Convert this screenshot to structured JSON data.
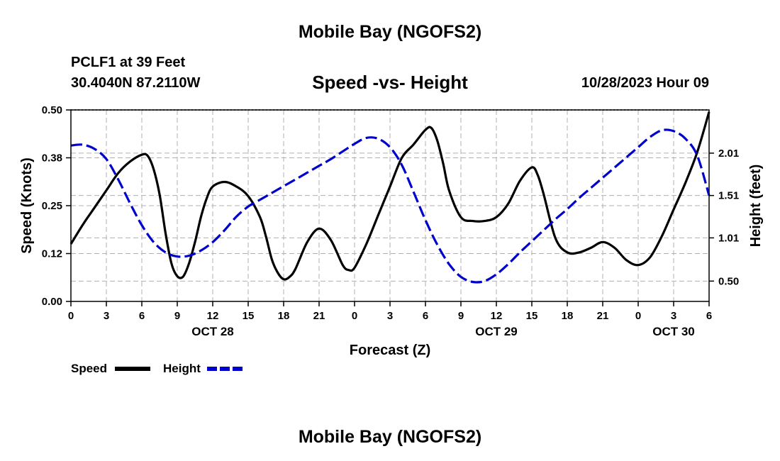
{
  "header": {
    "title": "Mobile Bay (NGOFS2)",
    "station": "PCLF1 at 39 Feet",
    "coords": "30.4040N  87.2110W",
    "subtitle": "Speed -vs- Height",
    "datetime": "10/28/2023 Hour 09"
  },
  "footer": {
    "title": "Mobile Bay (NGOFS2)"
  },
  "chart_data": {
    "type": "line",
    "title": "Speed -vs- Height",
    "xlabel": "Forecast (Z)",
    "ylabel": "Speed (Knots)",
    "y2label": "Height (feet)",
    "grid": true,
    "xlim": [
      0,
      54
    ],
    "ylim": [
      0,
      0.5
    ],
    "y2lim": [
      0.26,
      2.52
    ],
    "x_ticks": [
      0,
      3,
      6,
      9,
      12,
      15,
      18,
      21,
      24,
      27,
      30,
      33,
      36,
      39,
      42,
      45,
      48,
      51,
      54
    ],
    "x_tick_labels": [
      "0",
      "3",
      "6",
      "9",
      "12",
      "15",
      "18",
      "21",
      "0",
      "3",
      "6",
      "9",
      "12",
      "15",
      "18",
      "21",
      "0",
      "3",
      "6"
    ],
    "date_labels": [
      {
        "x": 12,
        "label": "OCT 28"
      },
      {
        "x": 36,
        "label": "OCT 29"
      },
      {
        "x": 51,
        "label": "OCT 30"
      }
    ],
    "y_ticks": [
      0.0,
      0.125,
      0.25,
      0.375,
      0.5
    ],
    "y_tick_labels": [
      "0.00",
      "0.12",
      "0.25",
      "0.38",
      "0.50"
    ],
    "y2_ticks": [
      0.5,
      1.01,
      1.51,
      2.01
    ],
    "y2_tick_labels": [
      "0.50",
      "1.01",
      "1.51",
      "2.01"
    ],
    "legend_position": "bottom-left",
    "series": [
      {
        "name": "Speed",
        "axis": "left",
        "color": "#000000",
        "style": "solid",
        "x": [
          0,
          1,
          2,
          3,
          4,
          5,
          6,
          6.5,
          7,
          7.5,
          8,
          8.5,
          9,
          9.5,
          10,
          10.5,
          11,
          11.5,
          12,
          13,
          14,
          15,
          16,
          16.5,
          17,
          17.5,
          18,
          18.5,
          19,
          20,
          21,
          22,
          23,
          23.5,
          24,
          25,
          26,
          27,
          28,
          29,
          30,
          30.5,
          31,
          31.5,
          32,
          33,
          34,
          35,
          36,
          37,
          38,
          39,
          39.5,
          40,
          41,
          42,
          43,
          44,
          45,
          46,
          47,
          48,
          49,
          50,
          51,
          52,
          53,
          54
        ],
        "values": [
          0.15,
          0.2,
          0.245,
          0.29,
          0.335,
          0.365,
          0.383,
          0.38,
          0.345,
          0.28,
          0.18,
          0.1,
          0.066,
          0.065,
          0.1,
          0.155,
          0.22,
          0.27,
          0.3,
          0.312,
          0.3,
          0.275,
          0.22,
          0.17,
          0.11,
          0.075,
          0.058,
          0.064,
          0.085,
          0.155,
          0.19,
          0.16,
          0.095,
          0.082,
          0.088,
          0.15,
          0.225,
          0.3,
          0.375,
          0.41,
          0.448,
          0.453,
          0.42,
          0.36,
          0.29,
          0.22,
          0.21,
          0.21,
          0.22,
          0.255,
          0.315,
          0.35,
          0.33,
          0.28,
          0.165,
          0.128,
          0.128,
          0.14,
          0.155,
          0.14,
          0.108,
          0.095,
          0.115,
          0.17,
          0.24,
          0.31,
          0.39,
          0.495
        ]
      },
      {
        "name": "Height",
        "axis": "right",
        "color": "#0000cc",
        "style": "dashed",
        "x": [
          0,
          1,
          2,
          3,
          4,
          5,
          6,
          7,
          8,
          9,
          10,
          11,
          12,
          13,
          14,
          15,
          16,
          17,
          18,
          19,
          20,
          21,
          22,
          23,
          24,
          25,
          26,
          27,
          28,
          29,
          30,
          31,
          32,
          33,
          34,
          35,
          36,
          37,
          38,
          39,
          40,
          41,
          42,
          43,
          44,
          45,
          46,
          47,
          48,
          49,
          50,
          51,
          52,
          53,
          54
        ],
        "values": [
          2.1,
          2.11,
          2.06,
          1.94,
          1.7,
          1.42,
          1.16,
          0.96,
          0.84,
          0.79,
          0.8,
          0.86,
          0.96,
          1.1,
          1.26,
          1.38,
          1.46,
          1.54,
          1.62,
          1.7,
          1.78,
          1.86,
          1.94,
          2.03,
          2.12,
          2.19,
          2.18,
          2.08,
          1.87,
          1.55,
          1.22,
          0.93,
          0.7,
          0.55,
          0.49,
          0.5,
          0.58,
          0.7,
          0.84,
          0.97,
          1.1,
          1.23,
          1.35,
          1.48,
          1.6,
          1.72,
          1.84,
          1.96,
          2.08,
          2.2,
          2.28,
          2.27,
          2.18,
          1.98,
          1.51
        ]
      }
    ]
  }
}
